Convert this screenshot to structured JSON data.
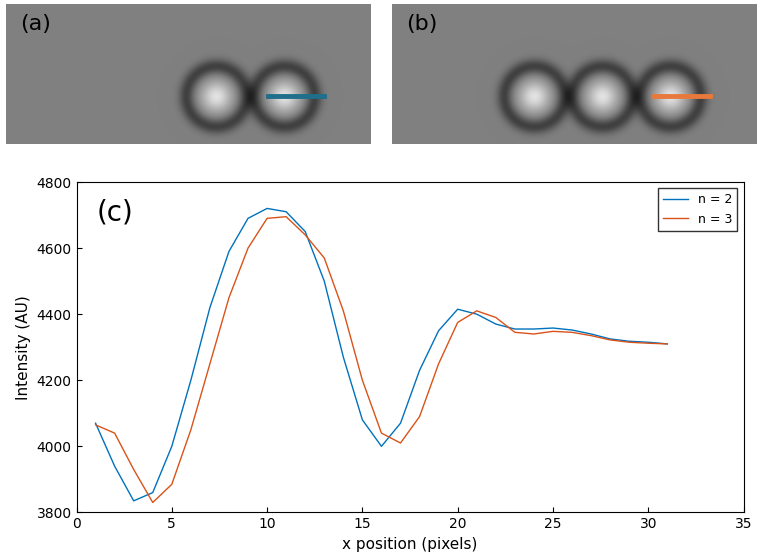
{
  "chart_data": [
    {
      "type": "image",
      "title": "(a)",
      "spheres": 2,
      "color": "#1f6e8c"
    },
    {
      "type": "image",
      "title": "(b)",
      "spheres": 3,
      "color": "#e8793a"
    },
    {
      "type": "line",
      "title": "(c)",
      "x_label": "x position (pixels)",
      "y_label": "Intensity (AU)",
      "x": [
        1,
        2,
        3,
        4,
        5,
        6,
        7,
        8,
        9,
        10,
        11,
        12,
        13,
        14,
        15,
        16,
        17,
        18,
        19,
        20,
        21,
        22,
        23,
        24,
        25,
        26,
        27,
        28,
        29,
        30,
        31
      ],
      "series": [
        {
          "name": "n = 2",
          "color": "#0072bd",
          "values": [
            4070,
            3940,
            3835,
            3860,
            4000,
            4200,
            4420,
            4590,
            4690,
            4720,
            4710,
            4650,
            4500,
            4270,
            4080,
            4000,
            4070,
            4230,
            4350,
            4415,
            4400,
            4370,
            4355,
            4355,
            4358,
            4352,
            4340,
            4325,
            4318,
            4315,
            4310
          ]
        },
        {
          "name": "n = 3",
          "color": "#d95319",
          "values": [
            4065,
            4040,
            3930,
            3830,
            3885,
            4050,
            4250,
            4450,
            4600,
            4690,
            4695,
            4640,
            4570,
            4410,
            4200,
            4040,
            4010,
            4090,
            4250,
            4375,
            4410,
            4390,
            4345,
            4340,
            4348,
            4345,
            4335,
            4322,
            4315,
            4312,
            4310
          ]
        }
      ],
      "xlim": [
        0,
        35
      ],
      "xticks": [
        0,
        5,
        10,
        15,
        20,
        25,
        30,
        35
      ],
      "ylim": [
        3800,
        4800
      ],
      "yticks": [
        3800,
        4000,
        4200,
        4400,
        4600,
        4800
      ],
      "legend": "upper right",
      "grid": false
    }
  ]
}
